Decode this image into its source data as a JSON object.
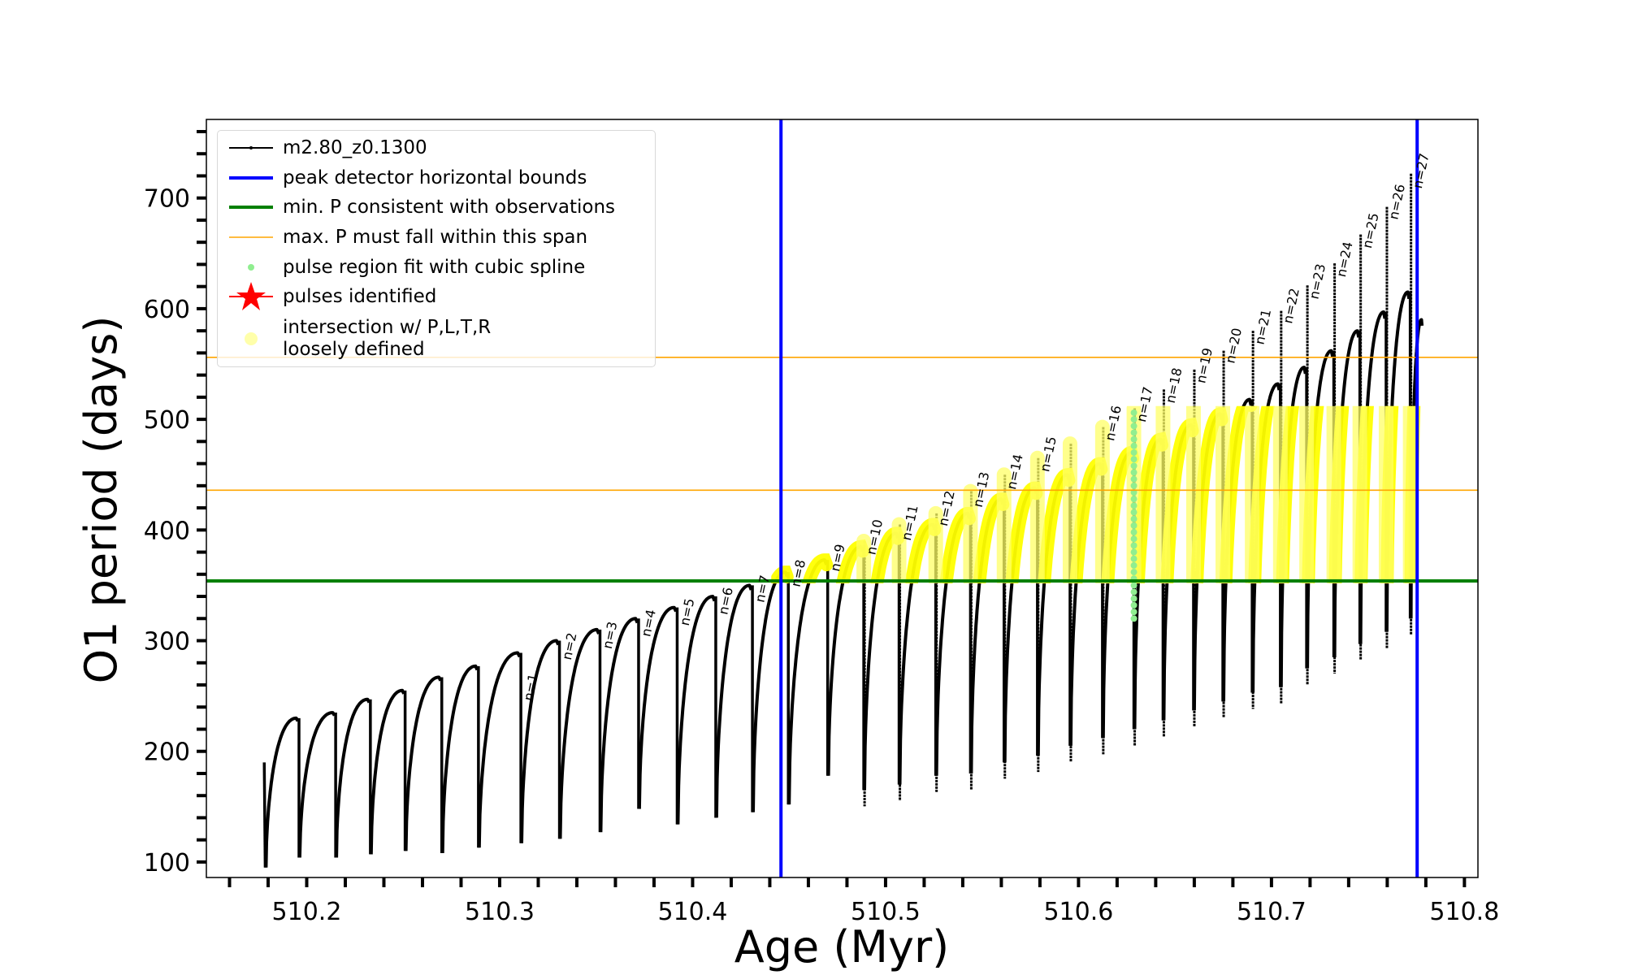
{
  "chart_data": {
    "type": "line",
    "title": "",
    "xlabel": "Age (Myr)",
    "ylabel": "O1 period (days)",
    "xlim": [
      510.148,
      510.807
    ],
    "ylim": [
      86,
      771
    ],
    "grid": false,
    "xticks": [
      510.2,
      510.3,
      510.4,
      510.5,
      510.6,
      510.7,
      510.8
    ],
    "xtick_labels": [
      "510.2",
      "510.3",
      "510.4",
      "510.5",
      "510.6",
      "510.7",
      "510.8"
    ],
    "xminor_step": 0.02,
    "yticks": [
      100,
      200,
      300,
      400,
      500,
      600,
      700
    ],
    "ytick_labels": [
      "100",
      "200",
      "300",
      "400",
      "500",
      "600",
      "700"
    ],
    "yminor_step": 20,
    "legend_placement": "upper-left",
    "legend": [
      {
        "label": "m2.80_z0.1300",
        "color": "#000000",
        "kind": "line-dot"
      },
      {
        "label": "peak detector horizontal bounds",
        "color": "#0000ff",
        "kind": "line-thick"
      },
      {
        "label": "min. P consistent with observations",
        "color": "#008000",
        "kind": "line-thick"
      },
      {
        "label": "max. P must fall within this span",
        "color": "#ffa500",
        "kind": "line-thin"
      },
      {
        "label": "pulse region fit with cubic spline",
        "color": "#90ee90",
        "kind": "dot"
      },
      {
        "label": "pulses identified",
        "color": "#ff0000",
        "kind": "star"
      },
      {
        "label": "intersection w/ P,L,T,R",
        "label2": "loosely defined",
        "color": "#ffffaa",
        "kind": "dot-large"
      }
    ],
    "vlines": [
      {
        "x": 510.4458,
        "color": "#0000ff"
      },
      {
        "x": 510.7755,
        "color": "#0000ff"
      }
    ],
    "hlines": [
      {
        "y": 354,
        "color": "#008000",
        "role": "min"
      },
      {
        "y": 436,
        "color": "#ffa500",
        "role": "max-low"
      },
      {
        "y": 556,
        "color": "#ffa500",
        "role": "max-high"
      }
    ],
    "highlight_range": [
      354,
      512
    ],
    "series_name": "m2.80_z0.1300",
    "start": {
      "t": 510.178,
      "P": 190
    },
    "end": {
      "t": 510.778,
      "P": 590
    },
    "pulses": [
      {
        "t": 510.1785,
        "peak": 190,
        "min": 95,
        "spike": 190,
        "label": ""
      },
      {
        "t": 510.196,
        "peak": 230,
        "min": 104,
        "spike": 230,
        "label": ""
      },
      {
        "t": 510.215,
        "peak": 235,
        "min": 104,
        "spike": 235,
        "label": ""
      },
      {
        "t": 510.233,
        "peak": 247,
        "min": 107,
        "spike": 247,
        "label": ""
      },
      {
        "t": 510.251,
        "peak": 255,
        "min": 110,
        "spike": 255,
        "label": ""
      },
      {
        "t": 510.27,
        "peak": 267,
        "min": 108,
        "spike": 267,
        "label": ""
      },
      {
        "t": 510.289,
        "peak": 277,
        "min": 113,
        "spike": 277,
        "label": ""
      },
      {
        "t": 510.311,
        "peak": 289,
        "min": 117,
        "spike": 289,
        "label": "n=1",
        "label_P": 245
      },
      {
        "t": 510.331,
        "peak": 300,
        "min": 121,
        "spike": 300,
        "label": "n=2",
        "label_P": 282
      },
      {
        "t": 510.352,
        "peak": 310,
        "min": 127,
        "spike": 310,
        "label": "n=3",
        "label_P": 292
      },
      {
        "t": 510.372,
        "peak": 320,
        "min": 148,
        "spike": 320,
        "label": "n=4",
        "label_P": 303
      },
      {
        "t": 510.392,
        "peak": 330,
        "min": 134,
        "spike": 330,
        "label": "n=5",
        "label_P": 313
      },
      {
        "t": 510.412,
        "peak": 340,
        "min": 140,
        "spike": 340,
        "label": "n=6",
        "label_P": 323
      },
      {
        "t": 510.431,
        "peak": 350,
        "min": 145,
        "spike": 350,
        "label": "n=7",
        "label_P": 334
      },
      {
        "t": 510.4496,
        "peak": 362,
        "min": 152,
        "spike": 362,
        "label": "n=8",
        "label_P": 348
      },
      {
        "t": 510.47,
        "peak": 373,
        "min": 178,
        "spike": 373,
        "label": "n=9",
        "label_P": 362
      },
      {
        "t": 510.4887,
        "peak": 385,
        "min": 165,
        "spike": 390,
        "label": "n=10",
        "label_P": 377
      },
      {
        "t": 510.507,
        "peak": 397,
        "min": 170,
        "spike": 405,
        "label": "n=11",
        "label_P": 390
      },
      {
        "t": 510.526,
        "peak": 405,
        "min": 178,
        "spike": 415,
        "label": "n=12",
        "label_P": 403
      },
      {
        "t": 510.544,
        "peak": 415,
        "min": 180,
        "spike": 435,
        "label": "n=13",
        "label_P": 420
      },
      {
        "t": 510.5614,
        "peak": 428,
        "min": 190,
        "spike": 450,
        "label": "n=14",
        "label_P": 436
      },
      {
        "t": 510.5787,
        "peak": 438,
        "min": 196,
        "spike": 465,
        "label": "n=15",
        "label_P": 452
      },
      {
        "t": 510.5956,
        "peak": 450,
        "min": 205,
        "spike": 478,
        "label": ""
      },
      {
        "t": 510.6124,
        "peak": 460,
        "min": 212,
        "spike": 493,
        "label": "n=16",
        "label_P": 480
      },
      {
        "t": 510.6287,
        "peak": 470,
        "min": 220,
        "spike": 510,
        "label": "n=17",
        "label_P": 497
      },
      {
        "t": 510.6438,
        "peak": 482,
        "min": 228,
        "spike": 527,
        "label": "n=18",
        "label_P": 514
      },
      {
        "t": 510.6596,
        "peak": 495,
        "min": 237,
        "spike": 545,
        "label": "n=19",
        "label_P": 532
      },
      {
        "t": 510.6748,
        "peak": 505,
        "min": 245,
        "spike": 562,
        "label": "n=20",
        "label_P": 550
      },
      {
        "t": 510.69,
        "peak": 518,
        "min": 253,
        "spike": 580,
        "label": "n=21",
        "label_P": 567
      },
      {
        "t": 510.7046,
        "peak": 532,
        "min": 258,
        "spike": 598,
        "label": "n=22",
        "label_P": 586
      },
      {
        "t": 510.7182,
        "peak": 547,
        "min": 275,
        "spike": 621,
        "label": "n=23",
        "label_P": 608
      },
      {
        "t": 510.7323,
        "peak": 562,
        "min": 285,
        "spike": 641,
        "label": "n=24",
        "label_P": 628
      },
      {
        "t": 510.7458,
        "peak": 580,
        "min": 297,
        "spike": 667,
        "label": "n=25",
        "label_P": 654
      },
      {
        "t": 510.7594,
        "peak": 597,
        "min": 308,
        "spike": 692,
        "label": "n=26",
        "label_P": 680
      },
      {
        "t": 510.7719,
        "peak": 615,
        "min": 320,
        "spike": 722,
        "label": "n=27",
        "label_P": 708
      }
    ],
    "spline_fit": {
      "t": 510.6287,
      "P_range": [
        320,
        510
      ]
    }
  }
}
